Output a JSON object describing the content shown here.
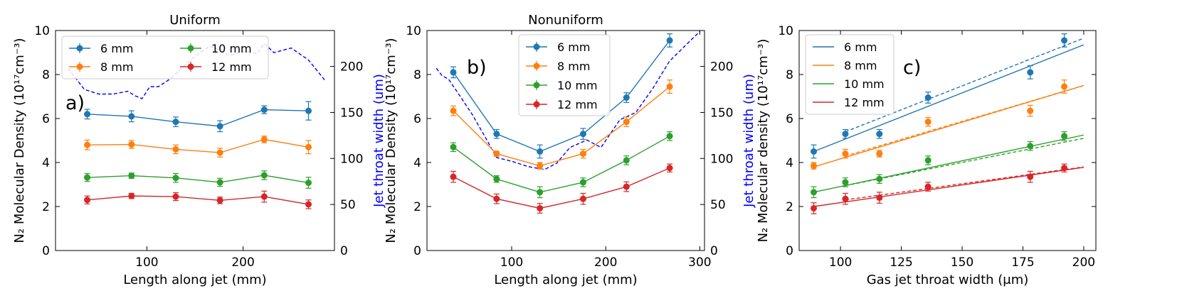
{
  "colors": {
    "blue": "#1f77b4",
    "orange": "#ff7f0e",
    "green": "#2ca02c",
    "red": "#d62728",
    "jet": "#0000ff"
  },
  "chart_data": [
    {
      "id": "a",
      "type": "line",
      "title": "Uniform",
      "panel_label": "a)",
      "xlabel": "Length along jet (mm)",
      "ylabel": "N₂ Molecular Density (10¹⁷cm⁻³)",
      "y2label": "Jet throat width (um)",
      "xlim": [
        5,
        295
      ],
      "ylim": [
        0,
        10
      ],
      "y2lim": [
        0,
        239
      ],
      "xticks": [
        100,
        200
      ],
      "yticks": [
        0,
        2,
        4,
        6,
        8,
        10
      ],
      "y2ticks": [
        0,
        50,
        100,
        150,
        200
      ],
      "legend": {
        "position": "top-left",
        "columns": 2
      },
      "x": [
        38,
        84,
        130,
        176,
        222,
        268
      ],
      "series": [
        {
          "name": "6 mm",
          "color_key": "blue",
          "values": [
            6.2,
            6.1,
            5.85,
            5.65,
            6.4,
            6.35
          ],
          "errors": [
            0.22,
            0.25,
            0.22,
            0.25,
            0.18,
            0.42
          ]
        },
        {
          "name": "8 mm",
          "color_key": "orange",
          "values": [
            4.8,
            4.82,
            4.6,
            4.45,
            5.05,
            4.7
          ],
          "errors": [
            0.22,
            0.18,
            0.2,
            0.2,
            0.15,
            0.3
          ]
        },
        {
          "name": "10 mm",
          "color_key": "green",
          "values": [
            3.32,
            3.4,
            3.3,
            3.1,
            3.42,
            3.08
          ],
          "errors": [
            0.18,
            0.12,
            0.2,
            0.18,
            0.2,
            0.25
          ]
        },
        {
          "name": "12 mm",
          "color_key": "red",
          "values": [
            2.3,
            2.48,
            2.45,
            2.28,
            2.45,
            2.1
          ],
          "errors": [
            0.18,
            0.12,
            0.18,
            0.15,
            0.25,
            0.2
          ]
        }
      ],
      "jet": {
        "name": "Jet throat width",
        "x": [
          18,
          35,
          50,
          65,
          80,
          88,
          95,
          103,
          112,
          125,
          145,
          165,
          178,
          185,
          200,
          215,
          222,
          232,
          250,
          268,
          285
        ],
        "y": [
          198,
          175,
          170,
          170,
          173,
          168,
          165,
          178,
          178,
          187,
          207,
          222,
          217,
          212,
          216,
          214,
          225,
          215,
          220,
          207,
          185
        ]
      }
    },
    {
      "id": "b",
      "type": "line",
      "title": "Nonuniform",
      "panel_label": "b)",
      "xlabel": "Length along jet (mm)",
      "ylabel": "N₂ Molecular Density (10¹⁷cm⁻³)",
      "y2label": "Jet throat width (um)",
      "xlim": [
        10,
        305
      ],
      "ylim": [
        0,
        10
      ],
      "y2lim": [
        0,
        239
      ],
      "xticks": [
        100,
        200,
        300
      ],
      "yticks": [
        0,
        2,
        4,
        6,
        8,
        10
      ],
      "y2ticks": [
        0,
        50,
        100,
        150,
        200
      ],
      "legend": {
        "position": "top-center",
        "columns": 1
      },
      "x": [
        38,
        84,
        130,
        176,
        222,
        268
      ],
      "series": [
        {
          "name": "6 mm",
          "color_key": "blue",
          "values": [
            8.1,
            5.3,
            4.5,
            5.3,
            6.95,
            9.55
          ],
          "errors": [
            0.25,
            0.2,
            0.3,
            0.25,
            0.22,
            0.3
          ]
        },
        {
          "name": "8 mm",
          "color_key": "orange",
          "values": [
            6.35,
            4.4,
            3.85,
            4.4,
            5.85,
            7.45
          ],
          "errors": [
            0.22,
            0.12,
            0.15,
            0.2,
            0.22,
            0.3
          ]
        },
        {
          "name": "10 mm",
          "color_key": "green",
          "values": [
            4.7,
            3.25,
            2.65,
            3.1,
            4.1,
            5.2
          ],
          "errors": [
            0.2,
            0.15,
            0.25,
            0.2,
            0.2,
            0.2
          ]
        },
        {
          "name": "12 mm",
          "color_key": "red",
          "values": [
            3.35,
            2.35,
            1.92,
            2.35,
            2.9,
            3.75
          ],
          "errors": [
            0.25,
            0.22,
            0.22,
            0.25,
            0.22,
            0.18
          ]
        }
      ],
      "jet": {
        "name": "Jet throat width",
        "x": [
          20,
          26,
          33,
          45,
          58,
          72,
          84,
          100,
          118,
          135,
          148,
          162,
          180,
          195,
          215,
          232,
          250,
          268,
          285,
          300
        ],
        "y": [
          198,
          190,
          186,
          168,
          148,
          123,
          101,
          97,
          91,
          88,
          95,
          112,
          120,
          112,
          142,
          150,
          176,
          206,
          223,
          238
        ]
      }
    },
    {
      "id": "c",
      "type": "scatter",
      "title": "",
      "panel_label": "c)",
      "xlabel": "Gas jet throat width (μm)",
      "ylabel": "N₂ Molecular density (10¹⁷cm⁻³)",
      "xlim": [
        83,
        205
      ],
      "ylim": [
        0,
        10
      ],
      "xticks": [
        100,
        125,
        150,
        175,
        200
      ],
      "yticks": [
        0,
        2,
        4,
        6,
        8,
        10
      ],
      "legend": {
        "position": "top-left",
        "columns": 1
      },
      "x": [
        89,
        102,
        116,
        136,
        178,
        192
      ],
      "series": [
        {
          "name": "6 mm",
          "color_key": "blue",
          "values": [
            4.5,
            5.3,
            5.3,
            6.95,
            8.1,
            9.55
          ],
          "errors": [
            0.3,
            0.2,
            0.2,
            0.25,
            0.3,
            0.3
          ],
          "fit_solid": [
            [
              89,
              4.5
            ],
            [
              200,
              9.35
            ]
          ],
          "fit_dashed": [
            [
              102,
              5.4
            ],
            [
              200,
              9.65
            ]
          ]
        },
        {
          "name": "8 mm",
          "color_key": "orange",
          "values": [
            3.85,
            4.4,
            4.4,
            5.85,
            6.35,
            7.45
          ],
          "errors": [
            0.15,
            0.2,
            0.15,
            0.2,
            0.25,
            0.3
          ],
          "fit_solid": [
            [
              89,
              3.8
            ],
            [
              200,
              7.5
            ]
          ],
          "fit_dashed": [
            [
              102,
              4.3
            ],
            [
              200,
              7.5
            ]
          ]
        },
        {
          "name": "10 mm",
          "color_key": "green",
          "values": [
            2.65,
            3.1,
            3.25,
            4.1,
            4.75,
            5.2
          ],
          "errors": [
            0.25,
            0.2,
            0.2,
            0.2,
            0.2,
            0.2
          ],
          "fit_solid": [
            [
              89,
              2.65
            ],
            [
              200,
              5.25
            ]
          ],
          "fit_dashed": [
            [
              102,
              2.95
            ],
            [
              200,
              5.1
            ]
          ]
        },
        {
          "name": "12 mm",
          "color_key": "red",
          "values": [
            1.92,
            2.35,
            2.4,
            2.9,
            3.35,
            3.75
          ],
          "errors": [
            0.25,
            0.25,
            0.25,
            0.2,
            0.25,
            0.18
          ],
          "fit_solid": [
            [
              89,
              2.0
            ],
            [
              200,
              3.78
            ]
          ],
          "fit_dashed": [
            [
              102,
              2.3
            ],
            [
              200,
              3.8
            ]
          ]
        }
      ]
    }
  ]
}
